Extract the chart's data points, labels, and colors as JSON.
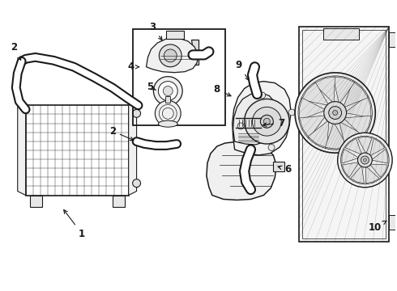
{
  "background_color": "#ffffff",
  "line_color": "#1a1a1a",
  "fig_width": 4.9,
  "fig_height": 3.6,
  "dpi": 100,
  "label_fontsize": 8.5
}
